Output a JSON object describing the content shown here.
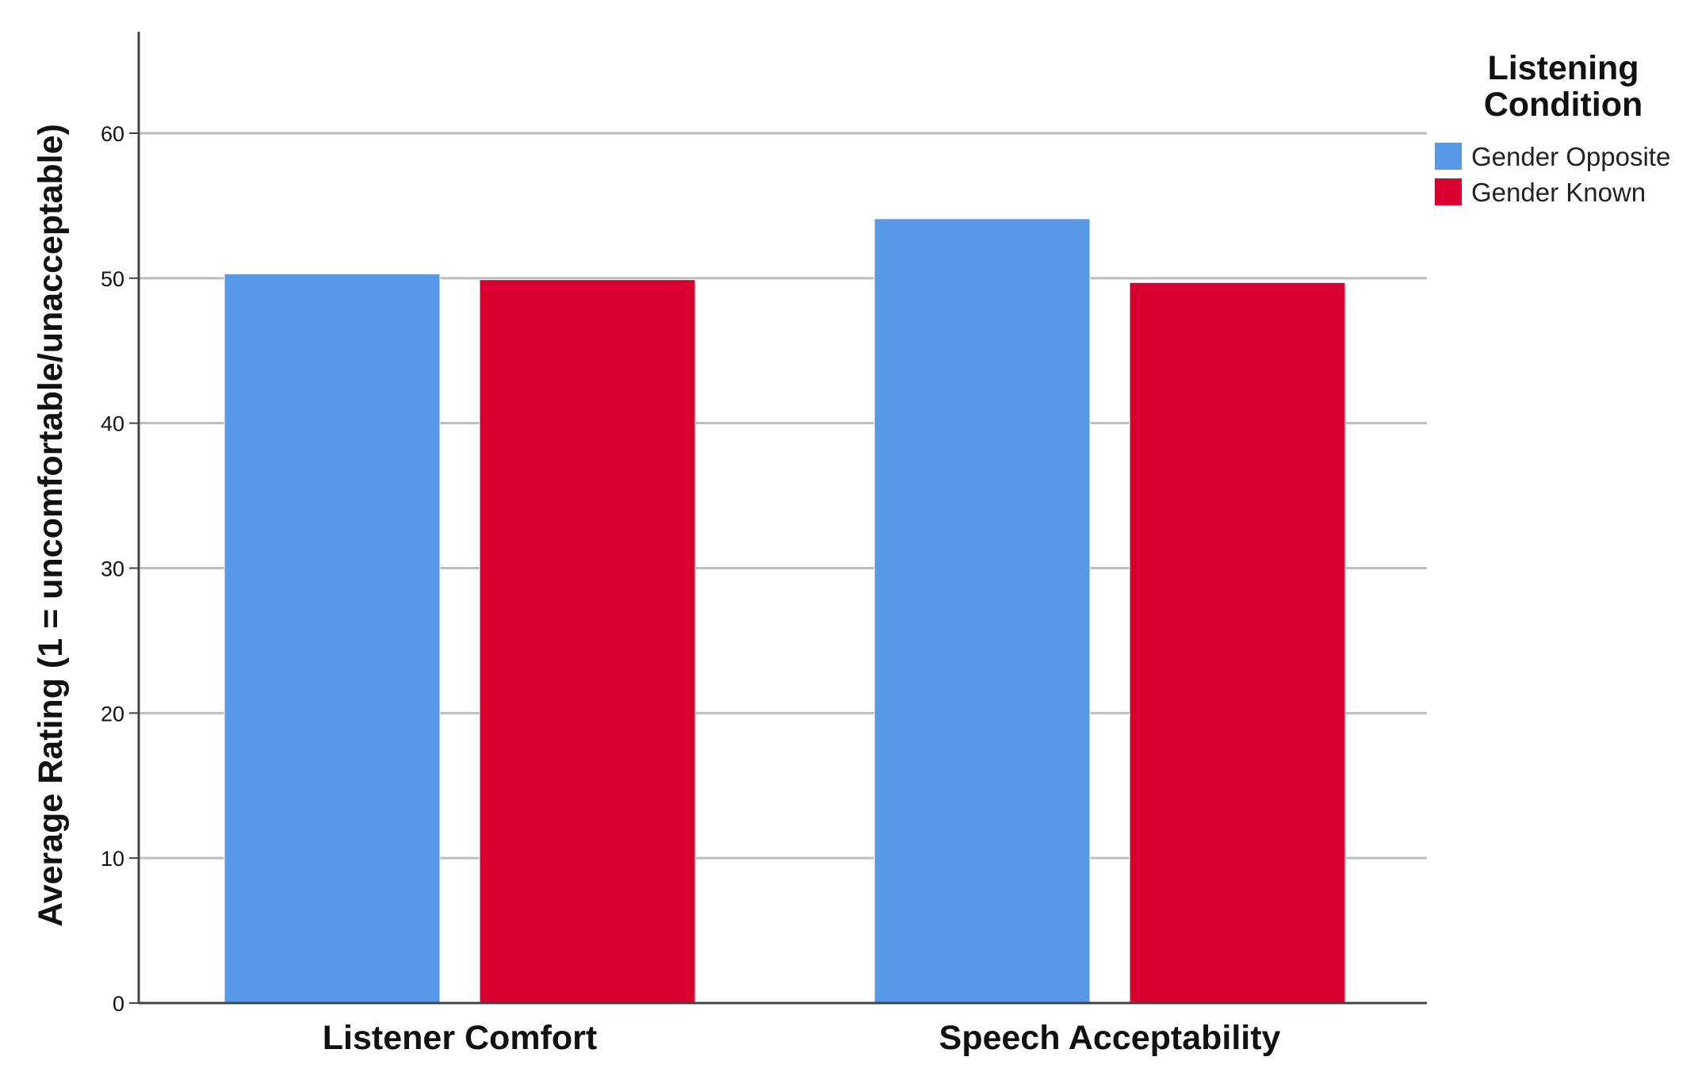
{
  "chart_data": {
    "type": "bar",
    "title": "",
    "xlabel": "",
    "ylabel": "Average Rating (1 = uncomfortable/unacceptable)",
    "ylim": [
      0,
      67
    ],
    "yticks": [
      0,
      10,
      20,
      30,
      40,
      50,
      60
    ],
    "grid": true,
    "legend_placement": "top-right",
    "legend": {
      "title_lines": [
        "Listening",
        "Condition"
      ]
    },
    "categories": [
      "Listener Comfort",
      "Speech Acceptability"
    ],
    "series": [
      {
        "name": "Gender Opposite",
        "color": "#5799e6",
        "values": [
          50.3,
          54.1
        ]
      },
      {
        "name": "Gender Known",
        "color": "#d70031",
        "values": [
          49.9,
          49.7
        ]
      }
    ]
  }
}
